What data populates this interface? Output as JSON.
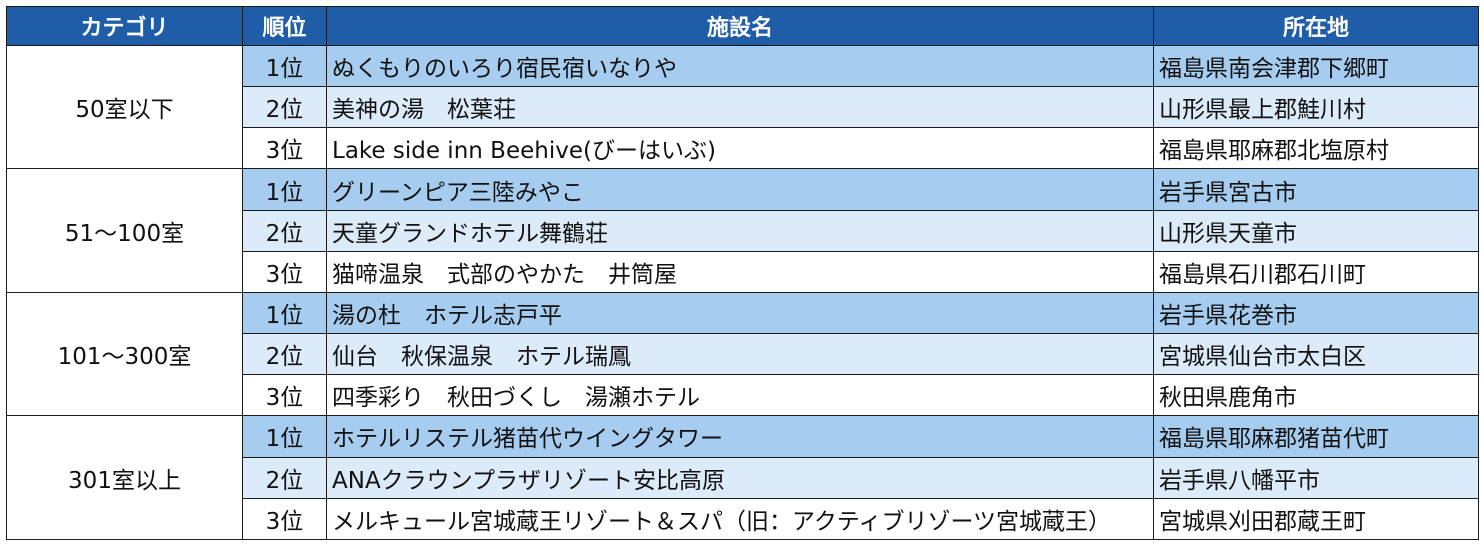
{
  "headers": {
    "category": "カテゴリ",
    "rank": "順位",
    "facility": "施設名",
    "location": "所在地"
  },
  "groups": [
    {
      "category": "50室以下",
      "rows": [
        {
          "rank": "1位",
          "name": "ぬくもりのいろり宿民宿いなりや",
          "location": "福島県南会津郡下郷町"
        },
        {
          "rank": "2位",
          "name": "美神の湯　松葉荘",
          "location": "山形県最上郡鮭川村"
        },
        {
          "rank": "3位",
          "name": "Lake side inn Beehive(びーはいぶ)",
          "location": "福島県耶麻郡北塩原村"
        }
      ]
    },
    {
      "category": "51～100室",
      "rows": [
        {
          "rank": "1位",
          "name": "グリーンピア三陸みやこ",
          "location": "岩手県宮古市"
        },
        {
          "rank": "2位",
          "name": "天童グランドホテル舞鶴荘",
          "location": "山形県天童市"
        },
        {
          "rank": "3位",
          "name": "猫啼温泉　式部のやかた　井筒屋",
          "location": "福島県石川郡石川町"
        }
      ]
    },
    {
      "category": "101～300室",
      "rows": [
        {
          "rank": "1位",
          "name": "湯の杜　ホテル志戸平",
          "location": "岩手県花巻市"
        },
        {
          "rank": "2位",
          "name": "仙台　秋保温泉　ホテル瑞鳳",
          "location": "宮城県仙台市太白区"
        },
        {
          "rank": "3位",
          "name": "四季彩り　秋田づくし　湯瀬ホテル",
          "location": "秋田県鹿角市"
        }
      ]
    },
    {
      "category": "301室以上",
      "rows": [
        {
          "rank": "1位",
          "name": "ホテルリステル猪苗代ウイングタワー",
          "location": "福島県耶麻郡猪苗代町"
        },
        {
          "rank": "2位",
          "name": "ANAクラウンプラザリゾート安比高原",
          "location": "岩手県八幡平市"
        },
        {
          "rank": "3位",
          "name": "メルキュール宮城蔵王リゾート＆スパ（旧：アクティブリゾーツ宮城蔵王）",
          "location": "宮城県刈田郡蔵王町"
        }
      ]
    }
  ],
  "colors": {
    "header_bg": "#1f5da8",
    "rank1_bg": "#a6cdf0",
    "rank2_bg": "#dcebf9",
    "rank3_bg": "#ffffff"
  }
}
